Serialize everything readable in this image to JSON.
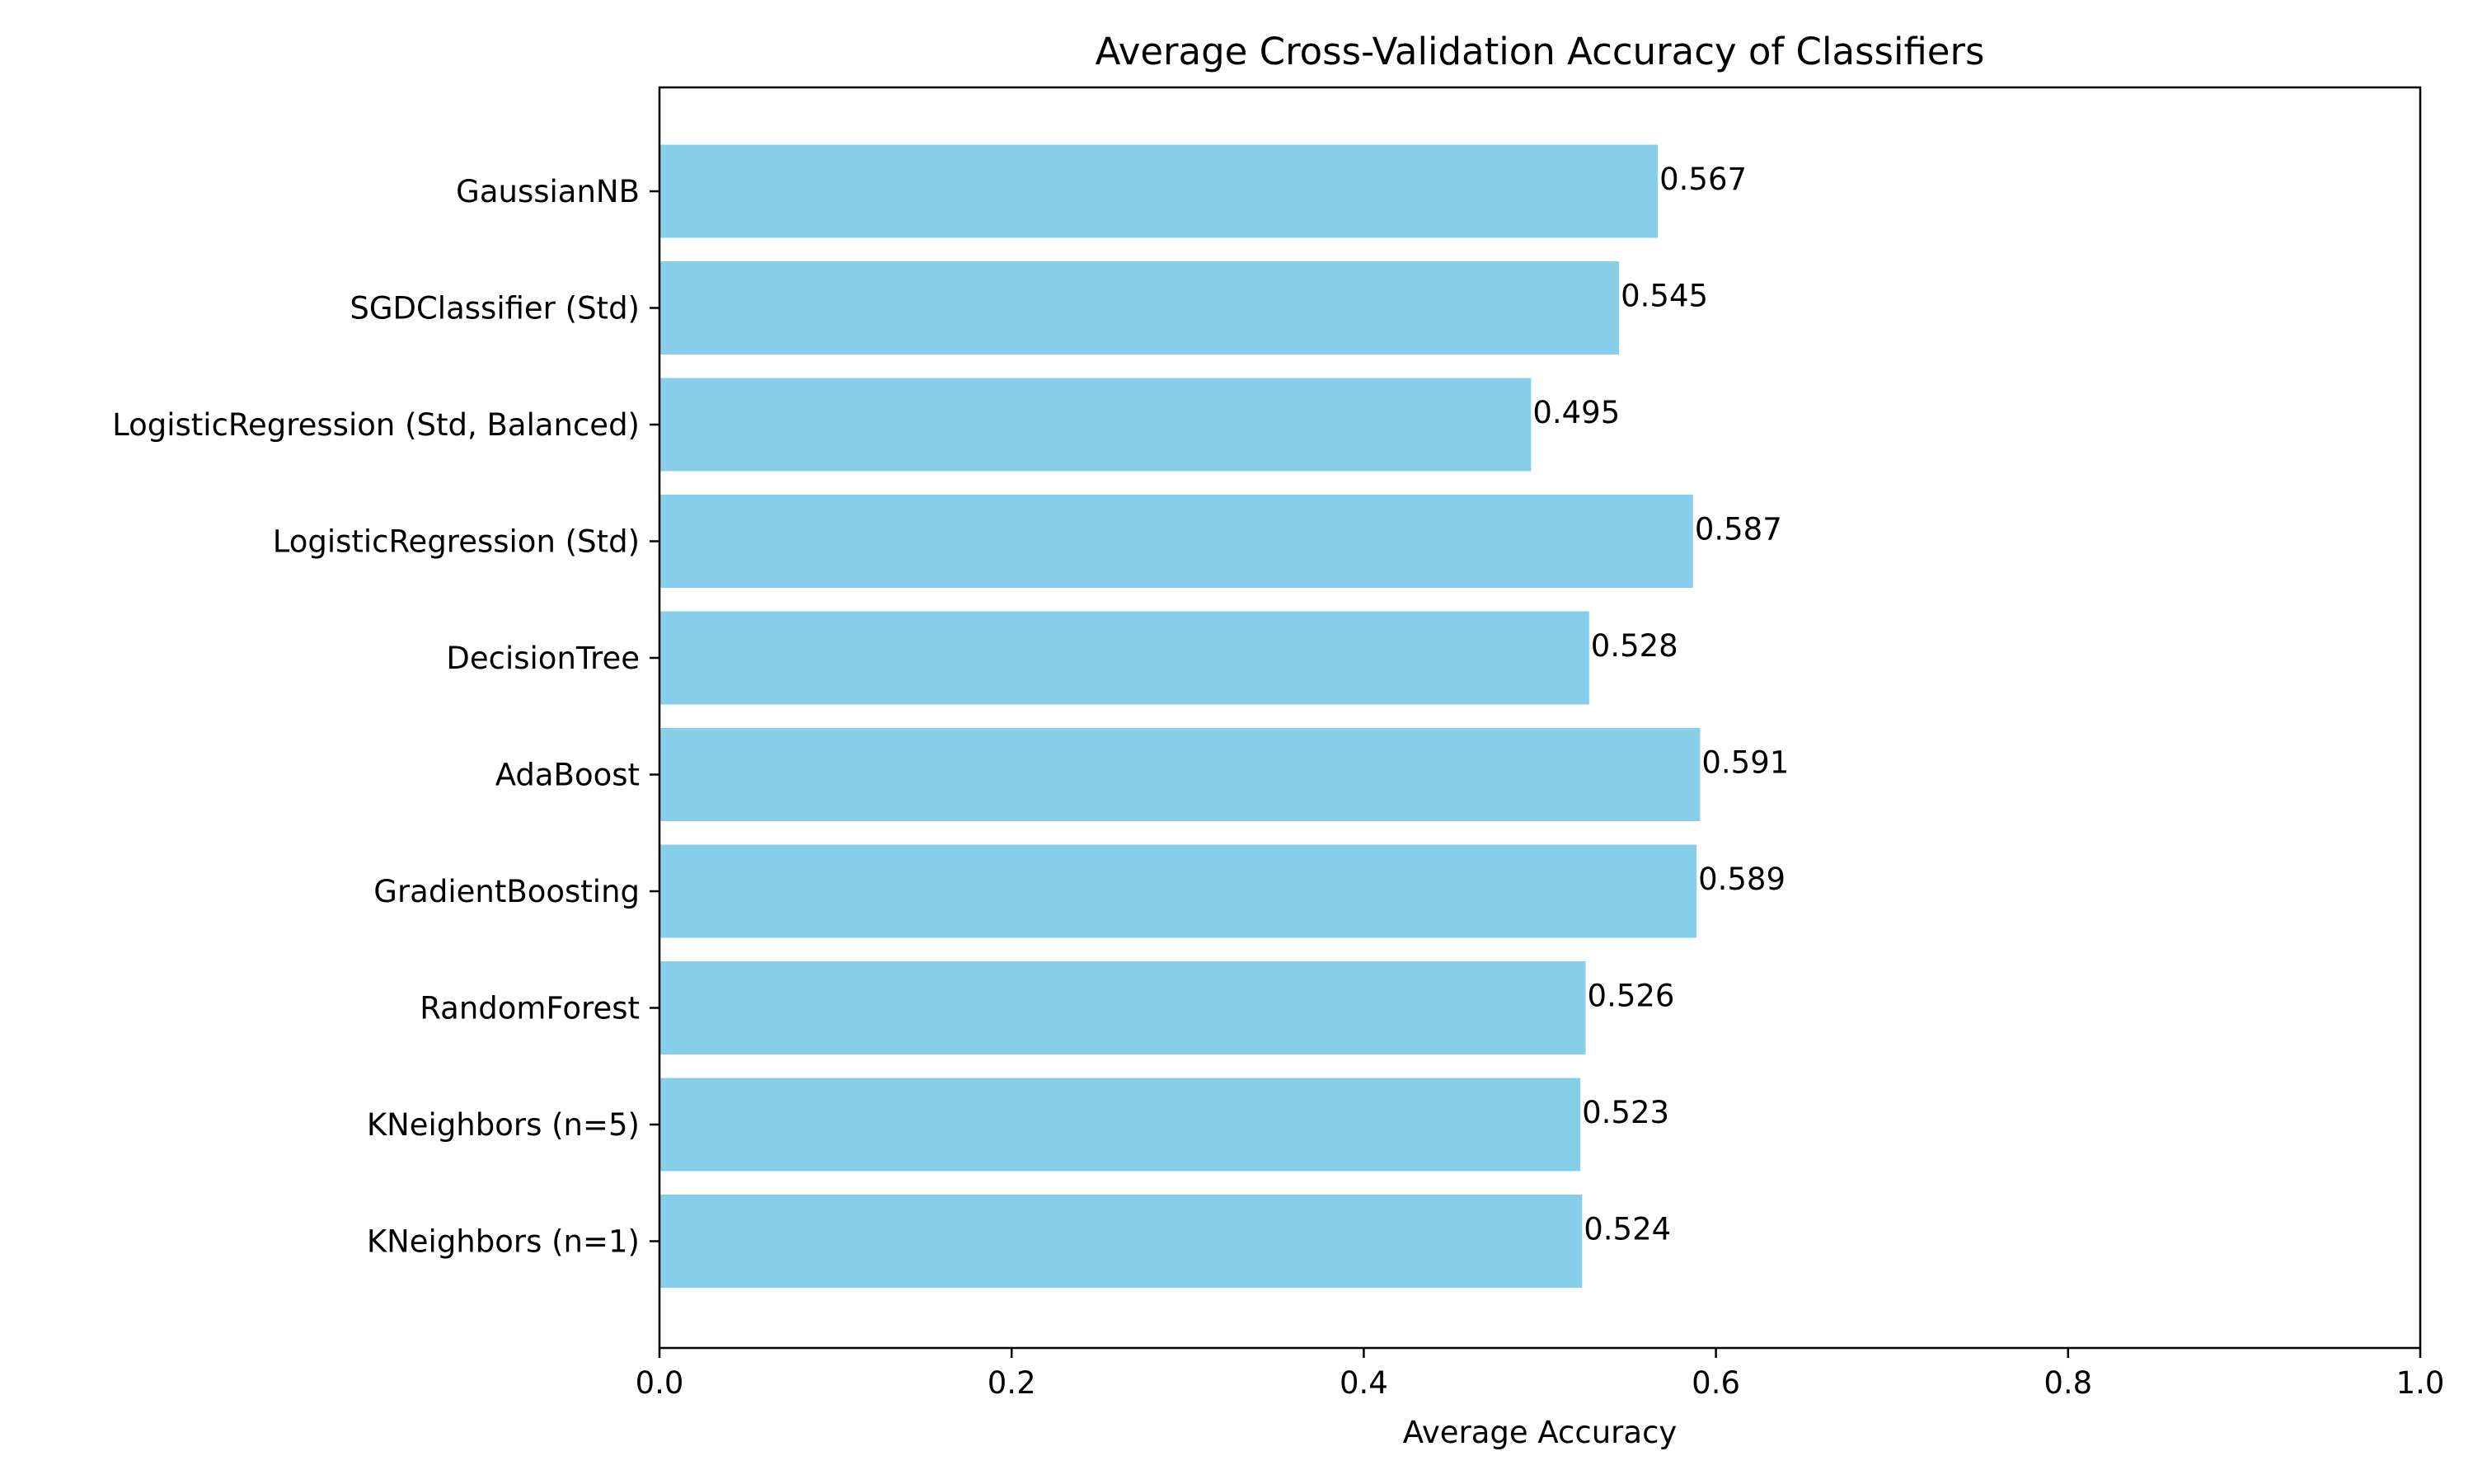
{
  "chart_data": {
    "type": "bar",
    "orientation": "horizontal",
    "title": "Average Cross-Validation Accuracy of Classifiers",
    "xlabel": "Average Accuracy",
    "ylabel": "",
    "xlim": [
      0.0,
      1.0
    ],
    "xticks": [
      "0.0",
      "0.2",
      "0.4",
      "0.6",
      "0.8",
      "1.0"
    ],
    "grid": false,
    "legend": false,
    "bar_color": "#87CEEB",
    "categories": [
      "GaussianNB",
      "SGDClassifier (Std)",
      "LogisticRegression (Std, Balanced)",
      "LogisticRegression (Std)",
      "DecisionTree",
      "AdaBoost",
      "GradientBoosting",
      "RandomForest",
      "KNeighbors (n=5)",
      "KNeighbors (n=1)"
    ],
    "values": [
      0.567,
      0.545,
      0.495,
      0.587,
      0.528,
      0.591,
      0.589,
      0.526,
      0.523,
      0.524
    ],
    "value_labels": [
      "0.567",
      "0.545",
      "0.495",
      "0.587",
      "0.528",
      "0.591",
      "0.589",
      "0.526",
      "0.523",
      "0.524"
    ]
  }
}
